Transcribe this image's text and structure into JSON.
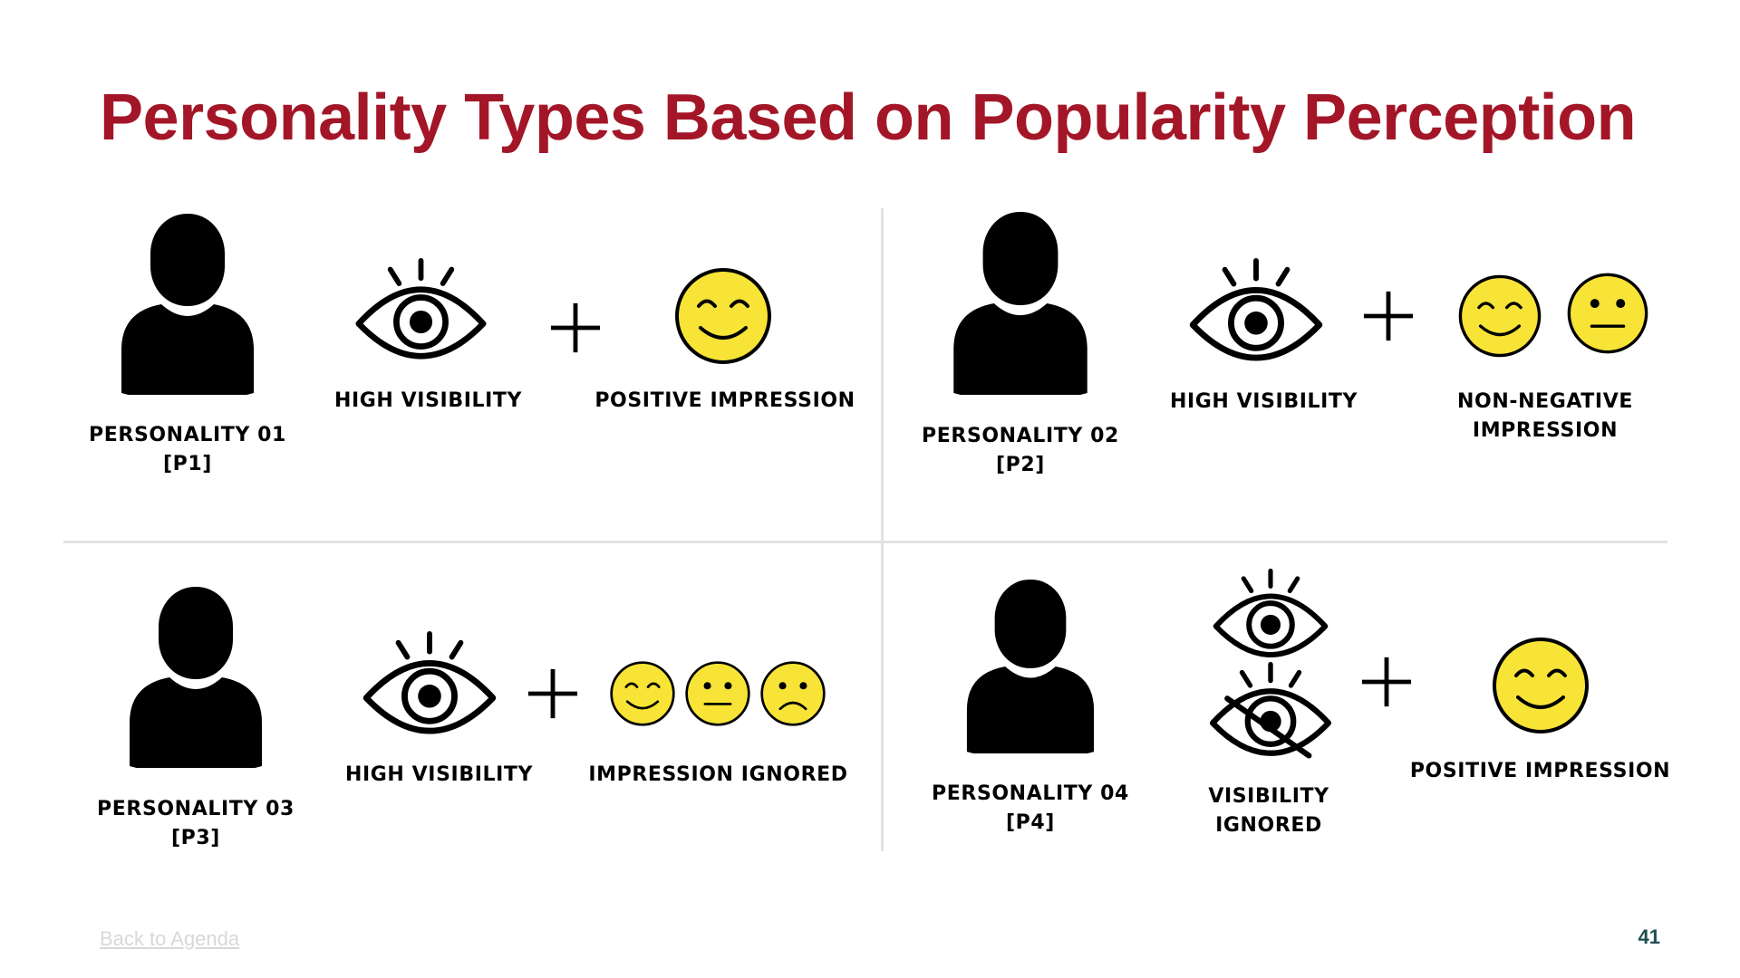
{
  "slide": {
    "title": "Personality Types Based on Popularity Perception",
    "page_number": "41"
  },
  "footer": {
    "back_link": "Back to Agenda"
  },
  "colors": {
    "title": "#a31627",
    "smiley_fill": "#f7e437",
    "divider": "#e2e2e2",
    "page_number": "#1d4e50"
  },
  "icons": [
    "person-icon",
    "eye-icon",
    "eye-crossed-icon",
    "plus-icon",
    "smiley-happy-icon",
    "smiley-neutral-icon",
    "smiley-sad-icon"
  ],
  "personalities": [
    {
      "name": "PERSONALITY 01",
      "code": "[P1]",
      "visibility": "HIGH VISIBILITY",
      "impression": "POSITIVE IMPRESSION"
    },
    {
      "name": "PERSONALITY 02",
      "code": "[P2]",
      "visibility": "HIGH VISIBILITY",
      "impression_line1": "NON-NEGATIVE",
      "impression_line2": "IMPRESSION"
    },
    {
      "name": "PERSONALITY 03",
      "code": "[P3]",
      "visibility": "HIGH VISIBILITY",
      "impression": "IMPRESSION IGNORED"
    },
    {
      "name": "PERSONALITY 04",
      "code": "[P4]",
      "visibility_line1": "VISIBILITY",
      "visibility_line2": "IGNORED",
      "impression": "POSITIVE IMPRESSION"
    }
  ]
}
